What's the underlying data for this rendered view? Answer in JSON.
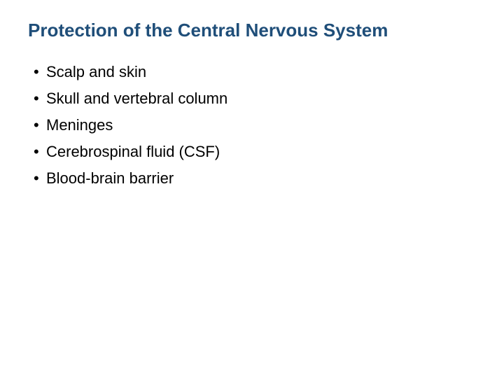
{
  "slide": {
    "title": "Protection of the Central Nervous System",
    "title_color": "#1f4e79",
    "title_fontsize": "26px",
    "body_color": "#000000",
    "body_fontsize": "22px",
    "background_color": "#ffffff",
    "bullets": [
      "Scalp and skin",
      "Skull and vertebral column",
      "Meninges",
      "Cerebrospinal fluid (CSF)",
      "Blood-brain barrier"
    ]
  }
}
